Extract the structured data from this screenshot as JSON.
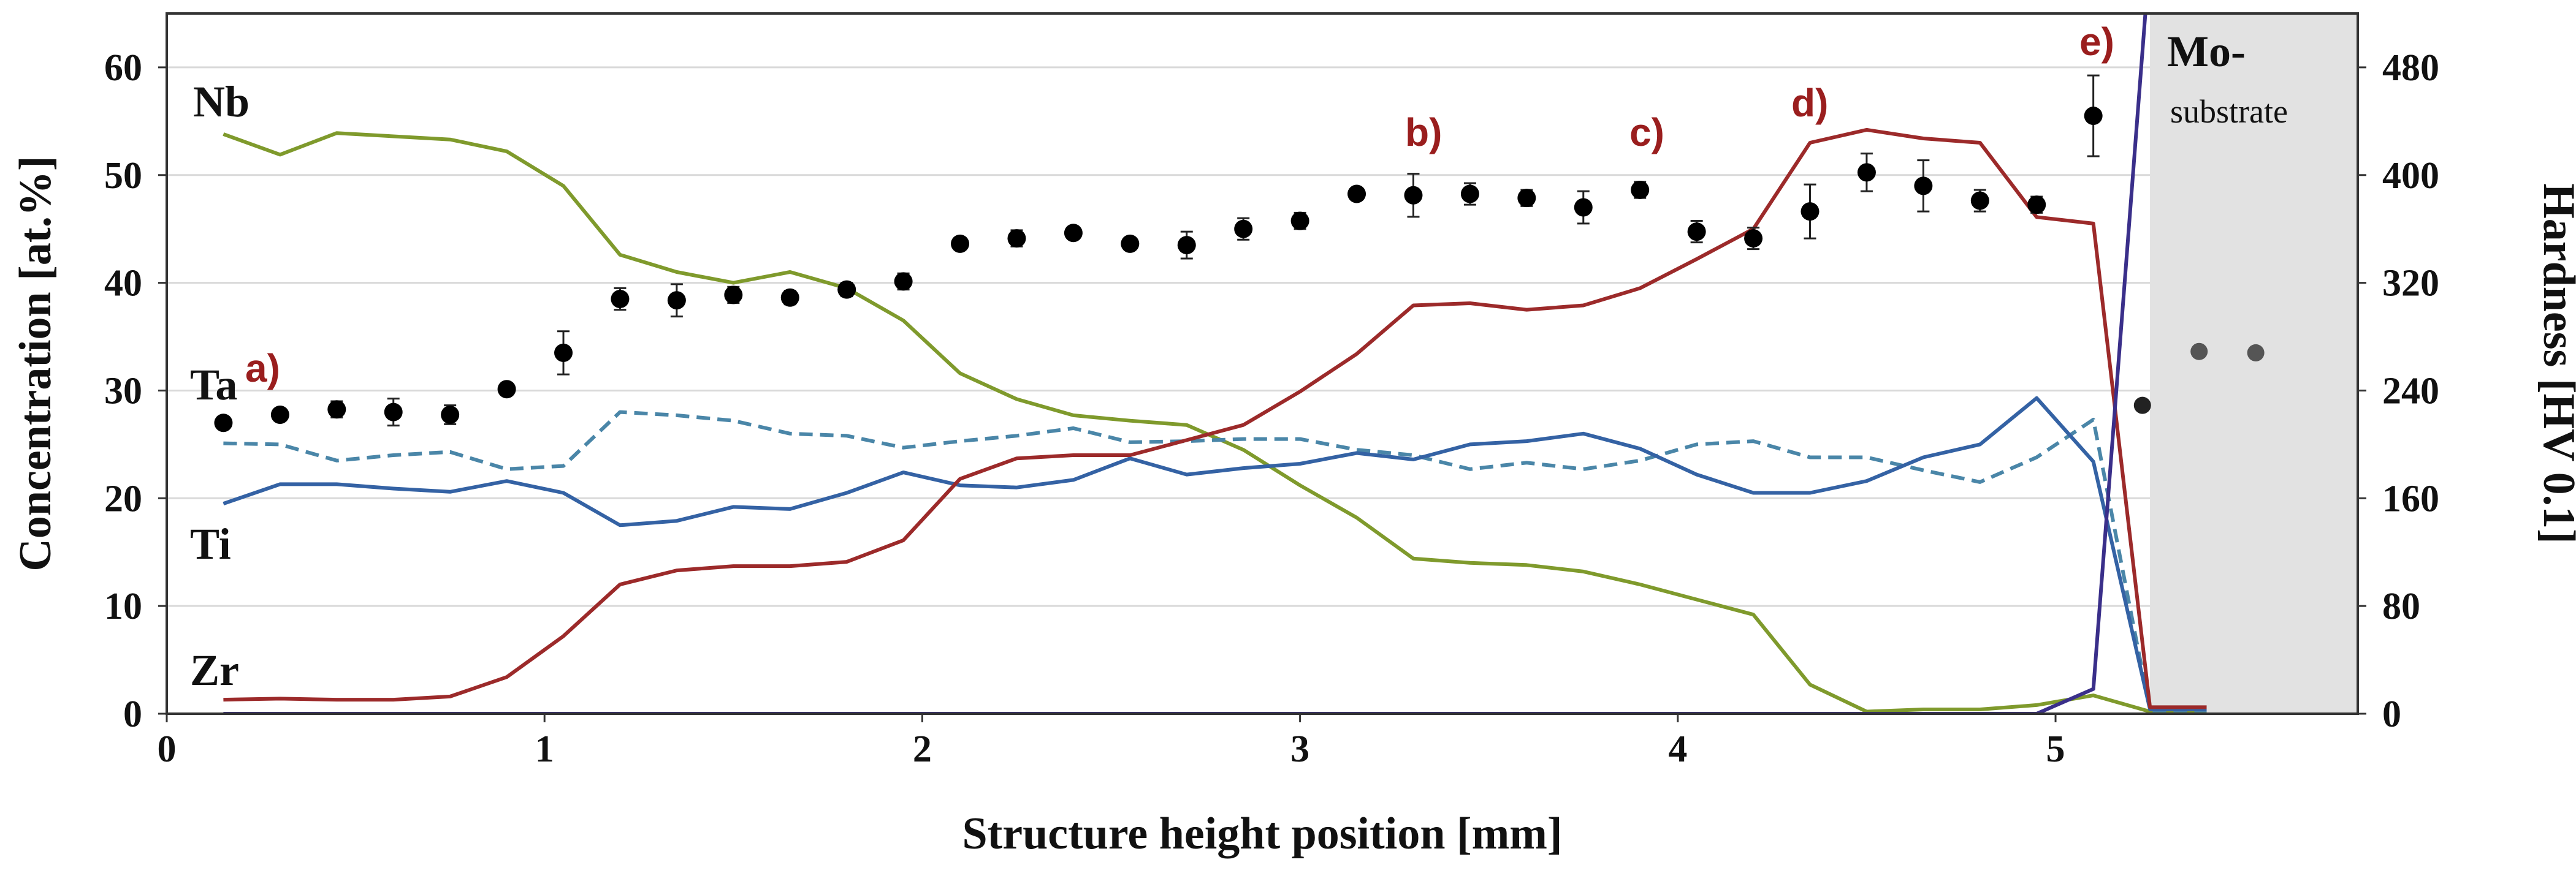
{
  "chart_data": {
    "type": "line",
    "title": "",
    "xlabel": "Structure height position  [mm]",
    "ylabel": "Concentration  [at.%]",
    "y2label": "Hardness  [HV 0.1]",
    "xlim": [
      0,
      5.8
    ],
    "ylim": [
      0,
      65
    ],
    "y2lim": [
      0,
      520
    ],
    "x_ticks": [
      0,
      1,
      2,
      3,
      4,
      5
    ],
    "y_ticks": [
      0,
      10,
      20,
      30,
      40,
      50,
      60
    ],
    "y2_ticks": [
      0,
      80,
      160,
      240,
      320,
      400,
      480
    ],
    "grid": true,
    "series": [
      {
        "name": "Nb",
        "axis": "left",
        "style": "solid",
        "color": "#7f9a2c",
        "x": [
          0.15,
          0.3,
          0.45,
          0.6,
          0.75,
          0.9,
          1.05,
          1.2,
          1.35,
          1.5,
          1.65,
          1.8,
          1.95,
          2.1,
          2.25,
          2.4,
          2.55,
          2.7,
          2.85,
          3.0,
          3.15,
          3.3,
          3.45,
          3.6,
          3.75,
          3.9,
          4.05,
          4.2,
          4.35,
          4.5,
          4.65,
          4.8,
          4.95,
          5.1,
          5.25,
          5.4
        ],
        "y": [
          53.8,
          51.9,
          53.9,
          53.6,
          53.3,
          52.2,
          49,
          42.6,
          41,
          40,
          41,
          39.5,
          36.5,
          31.6,
          29.2,
          27.7,
          27.2,
          26.8,
          24.5,
          21.2,
          18.2,
          14.4,
          14,
          13.8,
          13.2,
          12,
          10.6,
          9.2,
          2.7,
          0.2,
          0.4,
          0.4,
          0.8,
          1.7,
          0.2,
          0.2
        ]
      },
      {
        "name": "Ta",
        "axis": "left",
        "style": "dashed",
        "color": "#4a86a8",
        "x": [
          0.15,
          0.3,
          0.45,
          0.6,
          0.75,
          0.9,
          1.05,
          1.2,
          1.35,
          1.5,
          1.65,
          1.8,
          1.95,
          2.1,
          2.25,
          2.4,
          2.55,
          2.7,
          2.85,
          3.0,
          3.15,
          3.3,
          3.45,
          3.6,
          3.75,
          3.9,
          4.05,
          4.2,
          4.35,
          4.5,
          4.65,
          4.8,
          4.95,
          5.1,
          5.25,
          5.4
        ],
        "y": [
          25.1,
          25,
          23.5,
          24,
          24.3,
          22.7,
          23,
          28,
          27.7,
          27.2,
          26,
          25.8,
          24.7,
          25.3,
          25.8,
          26.5,
          25.2,
          25.3,
          25.5,
          25.5,
          24.5,
          24,
          22.7,
          23.3,
          22.7,
          23.5,
          25,
          25.3,
          23.8,
          23.8,
          22.6,
          21.5,
          23.8,
          27.3,
          0.3,
          0.3
        ]
      },
      {
        "name": "Ti",
        "axis": "left",
        "style": "solid",
        "color": "#3462a4",
        "x": [
          0.15,
          0.3,
          0.45,
          0.6,
          0.75,
          0.9,
          1.05,
          1.2,
          1.35,
          1.5,
          1.65,
          1.8,
          1.95,
          2.1,
          2.25,
          2.4,
          2.55,
          2.7,
          2.85,
          3.0,
          3.15,
          3.3,
          3.45,
          3.6,
          3.75,
          3.9,
          4.05,
          4.2,
          4.35,
          4.5,
          4.65,
          4.8,
          4.95,
          5.1,
          5.25,
          5.4
        ],
        "y": [
          19.5,
          21.3,
          21.3,
          20.9,
          20.6,
          21.6,
          20.5,
          17.5,
          17.9,
          19.2,
          19,
          20.5,
          22.4,
          21.2,
          21,
          21.7,
          23.7,
          22.2,
          22.8,
          23.2,
          24.2,
          23.6,
          25,
          25.3,
          26,
          24.6,
          22.2,
          20.5,
          20.5,
          21.6,
          23.8,
          25,
          29.3,
          23.4,
          0.4,
          0.4
        ]
      },
      {
        "name": "Zr",
        "axis": "left",
        "style": "solid",
        "color": "#9c2a2a",
        "x": [
          0.15,
          0.3,
          0.45,
          0.6,
          0.75,
          0.9,
          1.05,
          1.2,
          1.35,
          1.5,
          1.65,
          1.8,
          1.95,
          2.1,
          2.25,
          2.4,
          2.55,
          2.7,
          2.85,
          3.0,
          3.15,
          3.3,
          3.45,
          3.6,
          3.75,
          3.9,
          4.05,
          4.2,
          4.35,
          4.5,
          4.65,
          4.8,
          4.95,
          5.1,
          5.25,
          5.4
        ],
        "y": [
          1.3,
          1.4,
          1.3,
          1.3,
          1.6,
          3.4,
          7.2,
          12,
          13.3,
          13.7,
          13.7,
          14.1,
          16.1,
          21.8,
          23.7,
          24,
          24,
          25.4,
          26.8,
          29.9,
          33.4,
          37.9,
          38.1,
          37.5,
          37.9,
          39.5,
          42.2,
          45,
          53,
          54.2,
          53.4,
          53,
          46.1,
          45.5,
          0.6,
          0.6
        ]
      },
      {
        "name": "Mo",
        "axis": "left",
        "style": "solid",
        "color": "#3a2f8a",
        "x": [
          0.15,
          4.95,
          5.1,
          5.24
        ],
        "y": [
          0,
          0,
          2.3,
          66
        ]
      }
    ],
    "hardness": {
      "name": "Hardness",
      "axis": "right",
      "type": "scatter",
      "x": [
        0.15,
        0.3,
        0.45,
        0.6,
        0.75,
        0.9,
        1.05,
        1.2,
        1.35,
        1.5,
        1.65,
        1.8,
        1.95,
        2.1,
        2.25,
        2.4,
        2.55,
        2.7,
        2.85,
        3.0,
        3.15,
        3.3,
        3.45,
        3.6,
        3.75,
        3.9,
        4.05,
        4.2,
        4.35,
        4.5,
        4.65,
        4.8,
        4.95,
        5.1
      ],
      "y": [
        216,
        222,
        226,
        224,
        222,
        241,
        268,
        308,
        307,
        311,
        309,
        315,
        321,
        349,
        353,
        357,
        349,
        348,
        360,
        366,
        386,
        385,
        386,
        383,
        376,
        389,
        358,
        353,
        373,
        402,
        392,
        381,
        378,
        444
      ],
      "err": [
        4,
        4,
        6,
        10,
        7,
        4,
        16,
        8,
        12,
        6,
        5,
        5,
        6,
        3,
        6,
        4,
        4,
        10,
        8,
        6,
        4,
        16,
        8,
        6,
        12,
        6,
        8,
        8,
        20,
        14,
        19,
        8,
        6,
        30
      ]
    },
    "substrate_hardness": {
      "x": [
        5.23,
        5.38,
        5.53
      ],
      "y": [
        229,
        269,
        268
      ]
    },
    "labels": {
      "nb": "Nb",
      "ta": "Ta",
      "ti": "Ti",
      "zr": "Zr"
    },
    "annotations": [
      "a)",
      "b)",
      "c)",
      "d)",
      "e)"
    ],
    "substrate_label": "Mo-",
    "substrate_sub": "substrate",
    "colors": {
      "nb": "#7f9a2c",
      "ta": "#4a86a8",
      "ti": "#3462a4",
      "zr": "#9c2a2a",
      "mo": "#3a2f8a",
      "hardness": "#000000",
      "substrate": "#e2e2e2",
      "annotation": "#9a1e1e"
    }
  }
}
